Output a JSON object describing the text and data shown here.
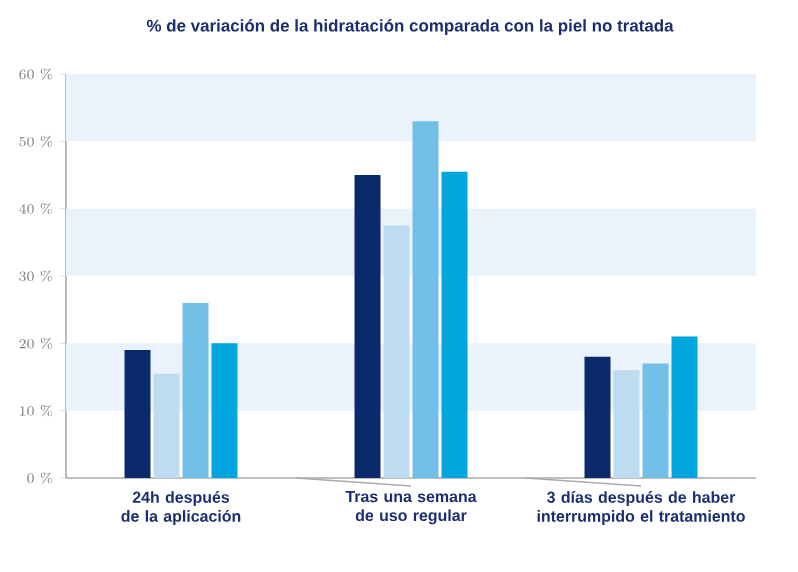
{
  "chart_data": {
    "type": "bar",
    "title": "% de variación de la hidratación comparada con la piel no tratada",
    "categories": [
      "24h después de la aplicación",
      "Tras una semana de uso regular",
      "3 días después de haber interrumpido el tratamiento"
    ],
    "series": [
      {
        "color": "#0b2a6b",
        "values": [
          19,
          45,
          18
        ]
      },
      {
        "color": "#bddcf1",
        "values": [
          15.5,
          37.5,
          16
        ]
      },
      {
        "color": "#72bfe8",
        "values": [
          26,
          53,
          17
        ]
      },
      {
        "color": "#00a6dd",
        "values": [
          20,
          45.5,
          21
        ]
      }
    ],
    "ylim": [
      0,
      60
    ],
    "yticks": [
      {
        "value": 0,
        "label": "0 %"
      },
      {
        "value": 10,
        "label": "10 %"
      },
      {
        "value": 20,
        "label": "20 %"
      },
      {
        "value": 30,
        "label": "30 %"
      },
      {
        "value": 40,
        "label": "40 %"
      },
      {
        "value": 50,
        "label": "50 %"
      },
      {
        "value": 60,
        "label": "60 %"
      }
    ],
    "bands": [
      {
        "axis": "y",
        "from": 10,
        "to": 20,
        "color": "#eaf2fb"
      },
      {
        "axis": "y",
        "from": 30,
        "to": 40,
        "color": "#eaf2fb"
      },
      {
        "axis": "y",
        "from": 50,
        "to": 60,
        "color": "#eaf2fb"
      }
    ],
    "grid": false
  }
}
